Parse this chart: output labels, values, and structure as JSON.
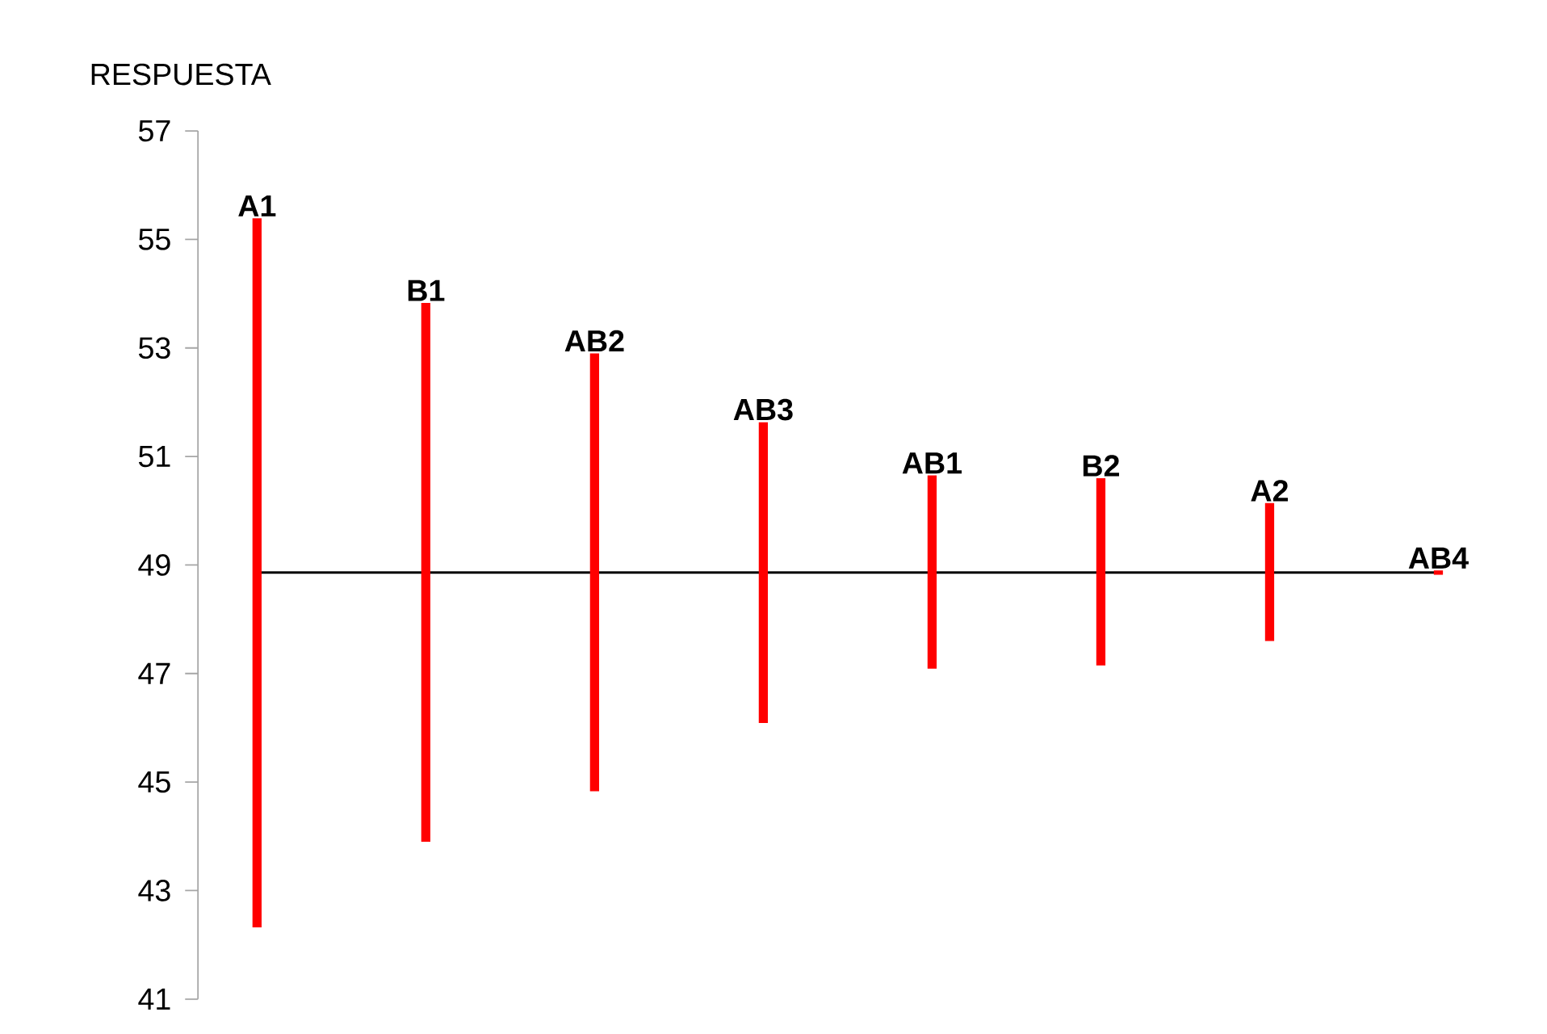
{
  "chart_data": {
    "type": "bar",
    "ylabel": "RESPUESTA",
    "categories": [
      "A1",
      "B1",
      "AB2",
      "AB3",
      "AB1",
      "B2",
      "A2",
      "AB4"
    ],
    "base": [
      42.32,
      43.9,
      44.83,
      46.09,
      47.09,
      47.15,
      47.6,
      48.82
    ],
    "values": [
      13.07,
      9.93,
      8.07,
      5.54,
      3.56,
      3.45,
      2.54,
      0.08
    ],
    "color": "#ff0000",
    "ylim": [
      41,
      57
    ],
    "yticks": [
      41,
      43,
      45,
      47,
      49,
      51,
      53,
      55,
      57
    ],
    "ref_lines": [
      {
        "axis": "y",
        "value": 48.86,
        "color": "#000000"
      }
    ]
  }
}
